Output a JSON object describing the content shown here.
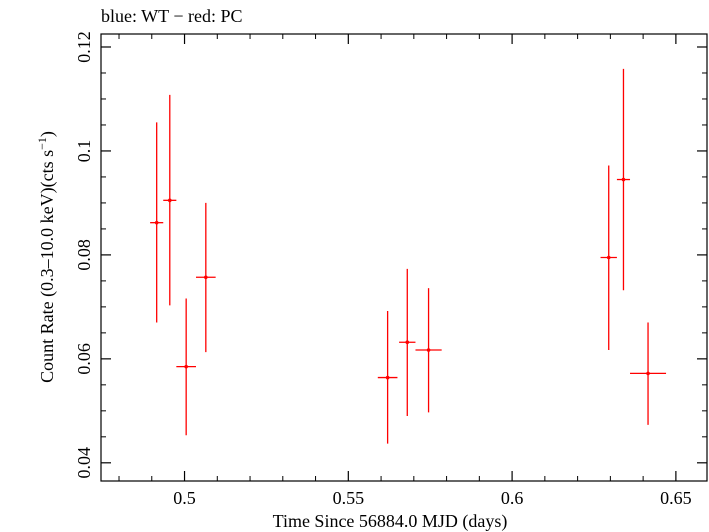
{
  "chart_data": {
    "type": "scatter",
    "title": "blue: WT − red: PC",
    "xlabel": "Time Since 56884.0 MJD (days)",
    "ylabel_main": "Count Rate (0.3–10.0 keV)(cts s",
    "ylabel_sup": "−1",
    "ylabel_tail": ")",
    "xlim": [
      0.4745,
      0.6595
    ],
    "ylim": [
      0.0365,
      0.1225
    ],
    "x_ticks": [
      0.5,
      0.55,
      0.6,
      0.65
    ],
    "x_tick_labels": [
      "0.5",
      "0.55",
      "0.6",
      "0.65"
    ],
    "y_ticks": [
      0.04,
      0.06,
      0.08,
      0.1,
      0.12
    ],
    "y_tick_labels": [
      "0.04",
      "0.06",
      "0.08",
      "0.1",
      "0.12"
    ],
    "series": [
      {
        "name": "PC",
        "color": "#ff0000",
        "points": [
          {
            "x": 0.4915,
            "xerr": 0.002,
            "y": 0.0862,
            "ylo": 0.067,
            "yhi": 0.1055
          },
          {
            "x": 0.4955,
            "xerr": 0.002,
            "y": 0.0905,
            "ylo": 0.0703,
            "yhi": 0.1108
          },
          {
            "x": 0.5005,
            "xerr": 0.003,
            "y": 0.0585,
            "ylo": 0.0453,
            "yhi": 0.0716
          },
          {
            "x": 0.5065,
            "xerr": 0.003,
            "y": 0.0757,
            "ylo": 0.0613,
            "yhi": 0.09
          },
          {
            "x": 0.562,
            "xerr": 0.003,
            "y": 0.0564,
            "ylo": 0.0437,
            "yhi": 0.0692
          },
          {
            "x": 0.568,
            "xerr": 0.0025,
            "y": 0.0632,
            "ylo": 0.049,
            "yhi": 0.0773
          },
          {
            "x": 0.5745,
            "xerr": 0.004,
            "y": 0.0617,
            "ylo": 0.0497,
            "yhi": 0.0736
          },
          {
            "x": 0.6295,
            "xerr": 0.0025,
            "y": 0.0795,
            "ylo": 0.0617,
            "yhi": 0.0972
          },
          {
            "x": 0.634,
            "xerr": 0.002,
            "y": 0.0945,
            "ylo": 0.0732,
            "yhi": 0.1158
          },
          {
            "x": 0.6415,
            "xerr": 0.0055,
            "y": 0.0572,
            "ylo": 0.0473,
            "yhi": 0.067
          }
        ]
      }
    ]
  }
}
